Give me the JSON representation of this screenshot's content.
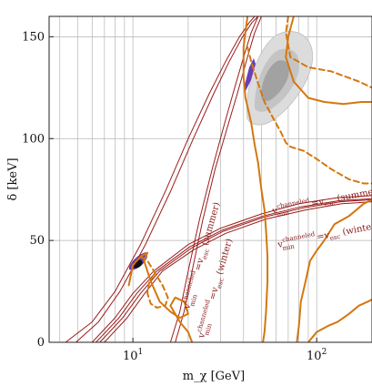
{
  "chart_data": {
    "type": "line",
    "xlabel": "m_χ [GeV]",
    "ylabel": "δ [keV]",
    "x_scale": "log",
    "xlim": [
      3.5,
      200
    ],
    "ylim": [
      0,
      160
    ],
    "x_ticks": [
      {
        "value": 10,
        "label": "10",
        "sup": "1"
      },
      {
        "value": 100,
        "label": "10",
        "sup": "2"
      }
    ],
    "y_ticks": [
      0,
      50,
      100,
      150
    ],
    "grid": true,
    "annotations": [
      {
        "id": "summer_upper",
        "text": "v_min^channeled = v_esc (summer)",
        "main": "v",
        "sub": "min",
        "sup": "channeled",
        "rest": "=v",
        "rest_sub": "esc",
        "suffix": " (summer)"
      },
      {
        "id": "winter_upper",
        "text": "v_min^channeled = v_esc (winter)",
        "main": "v",
        "sub": "min",
        "sup": "channeled",
        "rest": "=v",
        "rest_sub": "esc",
        "suffix": " (winter)"
      },
      {
        "id": "summer_lower",
        "text": "v_min^channeled = v_esc (summer)",
        "main": "v",
        "sub": "min",
        "sup": "channeled",
        "rest": "=v",
        "rest_sub": "esc",
        "suffix": " (summer)"
      },
      {
        "id": "winter_lower",
        "text": "v_min^channeled = v_esc (winter)",
        "main": "v",
        "sub": "min",
        "sup": "channeled",
        "rest": "=v",
        "rest_sub": "esc",
        "suffix": " (winter)"
      }
    ],
    "colors": {
      "escape_lines": "#9b1c1c",
      "limit_curves": "#d4770f",
      "allowed_outer": "#dcdcdc",
      "allowed_mid": "#c2c2c2",
      "allowed_inner": "#a0a0a0",
      "purple_region": "#6a3fb5",
      "dark_region": "#111111",
      "grid": "#b4b4b4"
    },
    "series": [
      {
        "role": "escape-summer-upper",
        "points": [
          [
            4.3,
            0
          ],
          [
            6,
            10
          ],
          [
            8,
            25
          ],
          [
            11,
            48
          ],
          [
            15,
            74
          ],
          [
            20,
            100
          ],
          [
            26,
            122
          ],
          [
            32,
            138
          ],
          [
            38,
            150
          ],
          [
            43,
            157
          ],
          [
            46,
            160
          ]
        ]
      },
      {
        "role": "escape-summer-upper-2",
        "points": [
          [
            4.9,
            0
          ],
          [
            6.5,
            10
          ],
          [
            8.5,
            25
          ],
          [
            11.7,
            48
          ],
          [
            16,
            74
          ],
          [
            21.3,
            100
          ],
          [
            27.5,
            122
          ],
          [
            33.5,
            138
          ],
          [
            39.5,
            150
          ],
          [
            44.5,
            157
          ],
          [
            48,
            160
          ]
        ]
      },
      {
        "role": "escape-winter-upper",
        "points": [
          [
            16,
            0
          ],
          [
            18,
            15
          ],
          [
            20,
            35
          ],
          [
            23,
            60
          ],
          [
            27,
            85
          ],
          [
            31,
            105
          ],
          [
            35,
            122
          ],
          [
            40,
            140
          ],
          [
            44,
            152
          ],
          [
            48,
            160
          ]
        ]
      },
      {
        "role": "escape-winter-upper-2",
        "points": [
          [
            17,
            0
          ],
          [
            19,
            15
          ],
          [
            21,
            35
          ],
          [
            24,
            60
          ],
          [
            28,
            85
          ],
          [
            32.5,
            105
          ],
          [
            37,
            122
          ],
          [
            42,
            140
          ],
          [
            46,
            152
          ],
          [
            50,
            160
          ]
        ]
      },
      {
        "role": "escape-lower-summer",
        "points": [
          [
            6,
            0
          ],
          [
            8,
            12
          ],
          [
            10,
            24
          ],
          [
            13,
            35
          ],
          [
            20,
            48
          ],
          [
            30,
            56
          ],
          [
            50,
            63
          ],
          [
            80,
            68
          ],
          [
            130,
            71
          ],
          [
            200,
            72
          ]
        ]
      },
      {
        "role": "escape-lower-summer-2",
        "points": [
          [
            6.6,
            0
          ],
          [
            8.8,
            12
          ],
          [
            11,
            24
          ],
          [
            14,
            35
          ],
          [
            21,
            46.5
          ],
          [
            31,
            54.5
          ],
          [
            52,
            61.5
          ],
          [
            85,
            66
          ],
          [
            135,
            69
          ],
          [
            200,
            70
          ]
        ]
      },
      {
        "role": "escape-lower-winter",
        "points": [
          [
            6.3,
            0
          ],
          [
            8.4,
            12
          ],
          [
            10.5,
            24
          ],
          [
            13.5,
            35
          ],
          [
            20.5,
            47
          ],
          [
            30.5,
            55
          ],
          [
            51,
            62
          ],
          [
            82,
            66.5
          ],
          [
            132,
            69.5
          ],
          [
            200,
            70.5
          ]
        ]
      },
      {
        "role": "escape-lower-winter-2",
        "points": [
          [
            7,
            0
          ],
          [
            9.3,
            12
          ],
          [
            11.6,
            24
          ],
          [
            14.5,
            35
          ],
          [
            21.5,
            45.5
          ],
          [
            32,
            53.5
          ],
          [
            53,
            60.5
          ],
          [
            87,
            65
          ],
          [
            137,
            68
          ],
          [
            200,
            69
          ]
        ]
      },
      {
        "role": "limit-solid-left",
        "points": [
          [
            9.5,
            28
          ],
          [
            10,
            38
          ],
          [
            11,
            42
          ],
          [
            12,
            44
          ],
          [
            11.5,
            40
          ],
          [
            12.5,
            30
          ],
          [
            14,
            20
          ],
          [
            16,
            15
          ],
          [
            18,
            12
          ],
          [
            20,
            14
          ],
          [
            19,
            20
          ],
          [
            17,
            22
          ],
          [
            16,
            18
          ],
          [
            18,
            10
          ],
          [
            20,
            5
          ],
          [
            21,
            0
          ]
        ]
      },
      {
        "role": "limit-solid-main",
        "points": [
          [
            42,
            160
          ],
          [
            40,
            145
          ],
          [
            40,
            130
          ],
          [
            41,
            120
          ],
          [
            44,
            108
          ],
          [
            46,
            97
          ],
          [
            48,
            88
          ],
          [
            50,
            75
          ],
          [
            52,
            65
          ],
          [
            53,
            55
          ],
          [
            54,
            42
          ],
          [
            54,
            30
          ],
          [
            53,
            15
          ],
          [
            52,
            5
          ],
          [
            51,
            0
          ]
        ]
      },
      {
        "role": "limit-solid-right",
        "points": [
          [
            75,
            160
          ],
          [
            70,
            150
          ],
          [
            68,
            140
          ],
          [
            75,
            128
          ],
          [
            90,
            120
          ],
          [
            110,
            118
          ],
          [
            140,
            117
          ],
          [
            175,
            118
          ],
          [
            200,
            118
          ]
        ]
      },
      {
        "role": "limit-solid-far",
        "points": [
          [
            78,
            0
          ],
          [
            80,
            8
          ],
          [
            82,
            20
          ],
          [
            87,
            30
          ],
          [
            92,
            40
          ],
          [
            100,
            45
          ],
          [
            110,
            50
          ],
          [
            125,
            58
          ],
          [
            150,
            62
          ],
          [
            180,
            68
          ],
          [
            200,
            70
          ]
        ]
      },
      {
        "role": "limit-solid-bottom",
        "points": [
          [
            90,
            0
          ],
          [
            100,
            5
          ],
          [
            115,
            8
          ],
          [
            130,
            10
          ],
          [
            150,
            14
          ],
          [
            170,
            18
          ],
          [
            190,
            20
          ],
          [
            200,
            21
          ]
        ]
      },
      {
        "role": "limit-dashed-right",
        "points": [
          [
            42,
            145
          ],
          [
            44,
            138
          ],
          [
            48,
            127
          ],
          [
            52,
            118
          ],
          [
            58,
            110
          ],
          [
            64,
            103
          ],
          [
            68,
            98
          ],
          [
            72,
            96
          ],
          [
            85,
            94
          ],
          [
            100,
            90
          ],
          [
            120,
            85
          ],
          [
            150,
            80
          ],
          [
            180,
            78
          ],
          [
            200,
            78
          ]
        ]
      },
      {
        "role": "limit-dashed-upper",
        "points": [
          [
            70,
            160
          ],
          [
            68,
            152
          ],
          [
            72,
            140
          ],
          [
            90,
            135
          ],
          [
            120,
            133
          ],
          [
            170,
            128
          ],
          [
            200,
            125
          ]
        ]
      },
      {
        "role": "limit-dashed-left",
        "points": [
          [
            11,
            42
          ],
          [
            12,
            40
          ],
          [
            13,
            35
          ],
          [
            14.5,
            28
          ],
          [
            15.5,
            22
          ],
          [
            15,
            18
          ],
          [
            13.5,
            17
          ],
          [
            12.5,
            19
          ],
          [
            12,
            24
          ],
          [
            12.3,
            30
          ],
          [
            13,
            33
          ]
        ]
      }
    ]
  }
}
